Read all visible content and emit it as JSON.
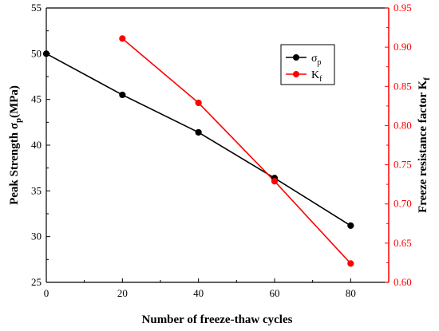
{
  "chart_data": {
    "type": "line",
    "x": [
      0,
      20,
      40,
      60,
      80
    ],
    "xlabel": "Number of freeze-thaw cycles",
    "xlim": [
      0,
      90
    ],
    "xticks": [
      "0",
      "20",
      "40",
      "60",
      "80"
    ],
    "ylabel_left": {
      "main": "Peak Strength σ",
      "sub": "p",
      "unit": "(MPa)"
    },
    "ylim_left": [
      25,
      55
    ],
    "yticks_left": [
      "25",
      "30",
      "35",
      "40",
      "45",
      "50",
      "55"
    ],
    "ylabel_right": {
      "main": "Freeze resistance factor K",
      "sub": "f"
    },
    "ylim_right": [
      0.6,
      0.95
    ],
    "yticks_right": [
      "0.60",
      "0.65",
      "0.70",
      "0.75",
      "0.80",
      "0.85",
      "0.90",
      "0.95"
    ],
    "series": [
      {
        "name": "σ",
        "name_sub": "p",
        "axis": "left",
        "color": "#000000",
        "x": [
          0,
          20,
          40,
          60,
          80
        ],
        "values": [
          50.0,
          45.5,
          41.4,
          36.4,
          31.2
        ]
      },
      {
        "name": "K",
        "name_sub": "f",
        "axis": "right",
        "color": "#ff0000",
        "x": [
          20,
          40,
          60,
          80
        ],
        "values": [
          0.911,
          0.829,
          0.729,
          0.624
        ]
      }
    ],
    "legend_position": "top-right",
    "grid": false
  }
}
